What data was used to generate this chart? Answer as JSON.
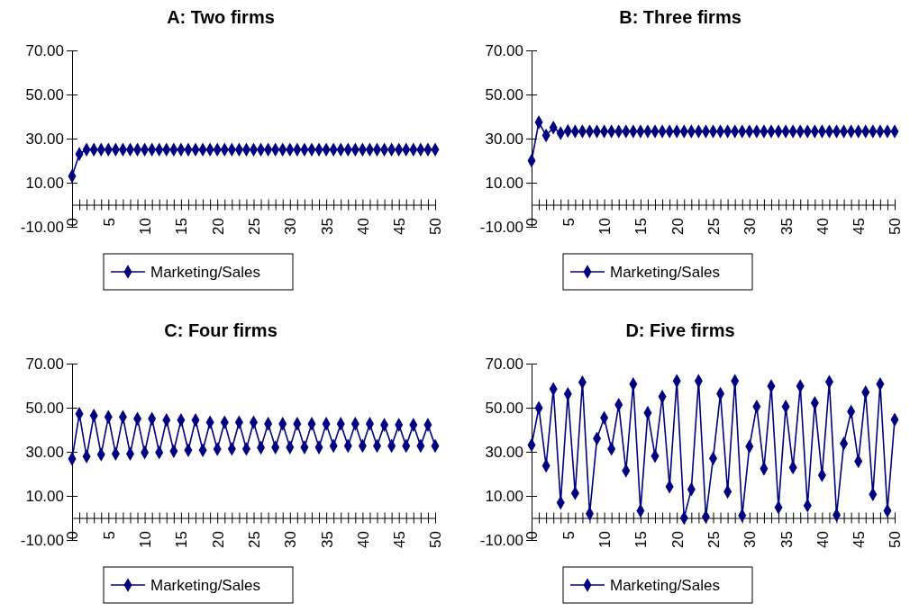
{
  "chart_data": [
    {
      "type": "line",
      "title": "A:  Two firms",
      "x": [
        0,
        1,
        2,
        3,
        4,
        5,
        6,
        7,
        8,
        9,
        10,
        11,
        12,
        13,
        14,
        15,
        16,
        17,
        18,
        19,
        20,
        21,
        22,
        23,
        24,
        25,
        26,
        27,
        28,
        29,
        30,
        31,
        32,
        33,
        34,
        35,
        36,
        37,
        38,
        39,
        40,
        41,
        42,
        43,
        44,
        45,
        46,
        47,
        48,
        49,
        50
      ],
      "series": [
        {
          "name": "Marketing/Sales",
          "color": "#000080",
          "values": [
            13,
            23,
            25,
            25,
            25,
            25,
            25,
            25,
            25,
            25,
            25,
            25,
            25,
            25,
            25,
            25,
            25,
            25,
            25,
            25,
            25,
            25,
            25,
            25,
            25,
            25,
            25,
            25,
            25,
            25,
            25,
            25,
            25,
            25,
            25,
            25,
            25,
            25,
            25,
            25,
            25,
            25,
            25,
            25,
            25,
            25,
            25,
            25,
            25,
            25,
            25
          ]
        }
      ],
      "xlim": [
        0,
        50
      ],
      "ylim": [
        -10,
        70
      ],
      "xticks": [
        0,
        {
          "value": 1,
          "label": null
        },
        {
          "value": 2,
          "label": null
        },
        {
          "value": 3,
          "label": null
        },
        {
          "value": 4,
          "label": null
        },
        5,
        {
          "value": 6,
          "label": null
        },
        {
          "value": 7,
          "label": null
        },
        {
          "value": 8,
          "label": null
        },
        {
          "value": 9,
          "label": null
        },
        10,
        {
          "value": 11,
          "label": null
        },
        {
          "value": 12,
          "label": null
        },
        {
          "value": 13,
          "label": null
        },
        {
          "value": 14,
          "label": null
        },
        15,
        {
          "value": 16,
          "label": null
        },
        {
          "value": 17,
          "label": null
        },
        {
          "value": 18,
          "label": null
        },
        {
          "value": 19,
          "label": null
        },
        20,
        {
          "value": 21,
          "label": null
        },
        {
          "value": 22,
          "label": null
        },
        {
          "value": 23,
          "label": null
        },
        {
          "value": 24,
          "label": null
        },
        25,
        {
          "value": 26,
          "label": null
        },
        {
          "value": 27,
          "label": null
        },
        {
          "value": 28,
          "label": null
        },
        {
          "value": 29,
          "label": null
        },
        30,
        {
          "value": 31,
          "label": null
        },
        {
          "value": 32,
          "label": null
        },
        {
          "value": 33,
          "label": null
        },
        {
          "value": 34,
          "label": null
        },
        35,
        {
          "value": 36,
          "label": null
        },
        {
          "value": 37,
          "label": null
        },
        {
          "value": 38,
          "label": null
        },
        {
          "value": 39,
          "label": null
        },
        40,
        {
          "value": 41,
          "label": null
        },
        {
          "value": 42,
          "label": null
        },
        {
          "value": 43,
          "label": null
        },
        {
          "value": 44,
          "label": null
        },
        45,
        {
          "value": 46,
          "label": null
        },
        {
          "value": 47,
          "label": null
        },
        {
          "value": 48,
          "label": null
        },
        {
          "value": 49,
          "label": null
        },
        50
      ],
      "yticks": [
        {
          "value": -10,
          "label": "-10.00"
        },
        {
          "value": 10,
          "label": "10.00"
        },
        {
          "value": 30,
          "label": "30.00"
        },
        {
          "value": 50,
          "label": "50.00"
        },
        {
          "value": 70,
          "label": "70.00"
        }
      ],
      "legend": "bottom",
      "marker": "diamond"
    },
    {
      "type": "line",
      "title": "B:  Three firms",
      "x": [
        0,
        1,
        2,
        3,
        4,
        5,
        6,
        7,
        8,
        9,
        10,
        11,
        12,
        13,
        14,
        15,
        16,
        17,
        18,
        19,
        20,
        21,
        22,
        23,
        24,
        25,
        26,
        27,
        28,
        29,
        30,
        31,
        32,
        33,
        34,
        35,
        36,
        37,
        38,
        39,
        40,
        41,
        42,
        43,
        44,
        45,
        46,
        47,
        48,
        49,
        50
      ],
      "series": [
        {
          "name": "Marketing/Sales",
          "color": "#000080",
          "values": [
            20,
            37.4,
            31.4,
            35,
            32.5,
            33.5,
            33.3,
            33.3,
            33.3,
            33.3,
            33.3,
            33.3,
            33.3,
            33.3,
            33.3,
            33.3,
            33.3,
            33.3,
            33.3,
            33.3,
            33.3,
            33.3,
            33.3,
            33.3,
            33.3,
            33.3,
            33.3,
            33.3,
            33.3,
            33.3,
            33.3,
            33.3,
            33.3,
            33.3,
            33.3,
            33.3,
            33.3,
            33.3,
            33.3,
            33.3,
            33.3,
            33.3,
            33.3,
            33.3,
            33.3,
            33.3,
            33.3,
            33.3,
            33.3,
            33.3,
            33.3
          ]
        }
      ],
      "xlim": [
        0,
        50
      ],
      "ylim": [
        -10,
        70
      ],
      "xticks": [
        0,
        {
          "value": 1,
          "label": null
        },
        {
          "value": 2,
          "label": null
        },
        {
          "value": 3,
          "label": null
        },
        {
          "value": 4,
          "label": null
        },
        5,
        {
          "value": 6,
          "label": null
        },
        {
          "value": 7,
          "label": null
        },
        {
          "value": 8,
          "label": null
        },
        {
          "value": 9,
          "label": null
        },
        10,
        {
          "value": 11,
          "label": null
        },
        {
          "value": 12,
          "label": null
        },
        {
          "value": 13,
          "label": null
        },
        {
          "value": 14,
          "label": null
        },
        15,
        {
          "value": 16,
          "label": null
        },
        {
          "value": 17,
          "label": null
        },
        {
          "value": 18,
          "label": null
        },
        {
          "value": 19,
          "label": null
        },
        20,
        {
          "value": 21,
          "label": null
        },
        {
          "value": 22,
          "label": null
        },
        {
          "value": 23,
          "label": null
        },
        {
          "value": 24,
          "label": null
        },
        25,
        {
          "value": 26,
          "label": null
        },
        {
          "value": 27,
          "label": null
        },
        {
          "value": 28,
          "label": null
        },
        {
          "value": 29,
          "label": null
        },
        30,
        {
          "value": 31,
          "label": null
        },
        {
          "value": 32,
          "label": null
        },
        {
          "value": 33,
          "label": null
        },
        {
          "value": 34,
          "label": null
        },
        35,
        {
          "value": 36,
          "label": null
        },
        {
          "value": 37,
          "label": null
        },
        {
          "value": 38,
          "label": null
        },
        {
          "value": 39,
          "label": null
        },
        40,
        {
          "value": 41,
          "label": null
        },
        {
          "value": 42,
          "label": null
        },
        {
          "value": 43,
          "label": null
        },
        {
          "value": 44,
          "label": null
        },
        45,
        {
          "value": 46,
          "label": null
        },
        {
          "value": 47,
          "label": null
        },
        {
          "value": 48,
          "label": null
        },
        {
          "value": 49,
          "label": null
        },
        50
      ],
      "yticks": [
        {
          "value": -10,
          "label": "-10.00"
        },
        {
          "value": 10,
          "label": "10.00"
        },
        {
          "value": 30,
          "label": "30.00"
        },
        {
          "value": 50,
          "label": "50.00"
        },
        {
          "value": 70,
          "label": "70.00"
        }
      ],
      "legend": "bottom",
      "marker": "diamond"
    },
    {
      "type": "line",
      "title": "C:  Four firms",
      "x": [
        0,
        1,
        2,
        3,
        4,
        5,
        6,
        7,
        8,
        9,
        10,
        11,
        12,
        13,
        14,
        15,
        16,
        17,
        18,
        19,
        20,
        21,
        22,
        23,
        24,
        25,
        26,
        27,
        28,
        29,
        30,
        31,
        32,
        33,
        34,
        35,
        36,
        37,
        38,
        39,
        40,
        41,
        42,
        43,
        44,
        45,
        46,
        47,
        48,
        49,
        50
      ],
      "series": [
        {
          "name": "Marketing/Sales",
          "color": "#000080",
          "values": [
            26.8,
            47.2,
            27.9,
            46.4,
            28.8,
            45.8,
            29.1,
            45.8,
            29.1,
            45,
            29.7,
            45,
            29.7,
            44.4,
            30.3,
            44.4,
            30.7,
            44.4,
            30.7,
            43.4,
            31.2,
            43.4,
            31.3,
            43.4,
            31.3,
            43.4,
            31.9,
            42.7,
            32,
            42.7,
            32,
            42.7,
            32,
            42.7,
            32,
            42.7,
            32.7,
            42.7,
            32.7,
            42.7,
            32.7,
            42.7,
            32.7,
            42.2,
            32.7,
            42.2,
            32.7,
            42.2,
            32.7,
            42.2,
            32.7
          ]
        }
      ],
      "xlim": [
        0,
        50
      ],
      "ylim": [
        -10,
        70
      ],
      "xticks": [
        0,
        {
          "value": 1,
          "label": null
        },
        {
          "value": 2,
          "label": null
        },
        {
          "value": 3,
          "label": null
        },
        {
          "value": 4,
          "label": null
        },
        5,
        {
          "value": 6,
          "label": null
        },
        {
          "value": 7,
          "label": null
        },
        {
          "value": 8,
          "label": null
        },
        {
          "value": 9,
          "label": null
        },
        10,
        {
          "value": 11,
          "label": null
        },
        {
          "value": 12,
          "label": null
        },
        {
          "value": 13,
          "label": null
        },
        {
          "value": 14,
          "label": null
        },
        15,
        {
          "value": 16,
          "label": null
        },
        {
          "value": 17,
          "label": null
        },
        {
          "value": 18,
          "label": null
        },
        {
          "value": 19,
          "label": null
        },
        20,
        {
          "value": 21,
          "label": null
        },
        {
          "value": 22,
          "label": null
        },
        {
          "value": 23,
          "label": null
        },
        {
          "value": 24,
          "label": null
        },
        25,
        {
          "value": 26,
          "label": null
        },
        {
          "value": 27,
          "label": null
        },
        {
          "value": 28,
          "label": null
        },
        {
          "value": 29,
          "label": null
        },
        30,
        {
          "value": 31,
          "label": null
        },
        {
          "value": 32,
          "label": null
        },
        {
          "value": 33,
          "label": null
        },
        {
          "value": 34,
          "label": null
        },
        35,
        {
          "value": 36,
          "label": null
        },
        {
          "value": 37,
          "label": null
        },
        {
          "value": 38,
          "label": null
        },
        {
          "value": 39,
          "label": null
        },
        40,
        {
          "value": 41,
          "label": null
        },
        {
          "value": 42,
          "label": null
        },
        {
          "value": 43,
          "label": null
        },
        {
          "value": 44,
          "label": null
        },
        45,
        {
          "value": 46,
          "label": null
        },
        {
          "value": 47,
          "label": null
        },
        {
          "value": 48,
          "label": null
        },
        {
          "value": 49,
          "label": null
        },
        50
      ],
      "yticks": [
        {
          "value": -10,
          "label": "-10.00"
        },
        {
          "value": 10,
          "label": "10.00"
        },
        {
          "value": 30,
          "label": "30.00"
        },
        {
          "value": 50,
          "label": "50.00"
        },
        {
          "value": 70,
          "label": "70.00"
        }
      ],
      "legend": "bottom",
      "marker": "diamond"
    },
    {
      "type": "line",
      "title": "D:  Five firms",
      "x": [
        0,
        1,
        2,
        3,
        4,
        5,
        6,
        7,
        8,
        9,
        10,
        11,
        12,
        13,
        14,
        15,
        16,
        17,
        18,
        19,
        20,
        21,
        22,
        23,
        24,
        25,
        26,
        27,
        28,
        29,
        30,
        31,
        32,
        33,
        34,
        35,
        36,
        37,
        38,
        39,
        40,
        41,
        42,
        43,
        44,
        45,
        46,
        47,
        48,
        49,
        50
      ],
      "series": [
        {
          "name": "Marketing/Sales",
          "color": "#000080",
          "values": [
            33.1,
            49.9,
            23.7,
            58.5,
            6.9,
            56.2,
            11.2,
            61.5,
            1.9,
            36,
            45.4,
            31.3,
            51.3,
            21.4,
            60.7,
            3.3,
            47.7,
            28.1,
            55,
            14.2,
            62.1,
            0,
            13,
            62.1,
            0.5,
            27,
            56.3,
            11.9,
            62.1,
            1.1,
            32.4,
            50.5,
            22.3,
            59.8,
            4.8,
            50.5,
            22.9,
            59.8,
            5.6,
            52.1,
            19.4,
            61.7,
            1.3,
            33.8,
            48.3,
            25.7,
            57,
            10.7,
            60.7,
            3.3,
            44.6
          ]
        }
      ],
      "xlim": [
        0,
        50
      ],
      "ylim": [
        -10,
        70
      ],
      "xticks": [
        0,
        {
          "value": 1,
          "label": null
        },
        {
          "value": 2,
          "label": null
        },
        {
          "value": 3,
          "label": null
        },
        {
          "value": 4,
          "label": null
        },
        5,
        {
          "value": 6,
          "label": null
        },
        {
          "value": 7,
          "label": null
        },
        {
          "value": 8,
          "label": null
        },
        {
          "value": 9,
          "label": null
        },
        10,
        {
          "value": 11,
          "label": null
        },
        {
          "value": 12,
          "label": null
        },
        {
          "value": 13,
          "label": null
        },
        {
          "value": 14,
          "label": null
        },
        15,
        {
          "value": 16,
          "label": null
        },
        {
          "value": 17,
          "label": null
        },
        {
          "value": 18,
          "label": null
        },
        {
          "value": 19,
          "label": null
        },
        20,
        {
          "value": 21,
          "label": null
        },
        {
          "value": 22,
          "label": null
        },
        {
          "value": 23,
          "label": null
        },
        {
          "value": 24,
          "label": null
        },
        25,
        {
          "value": 26,
          "label": null
        },
        {
          "value": 27,
          "label": null
        },
        {
          "value": 28,
          "label": null
        },
        {
          "value": 29,
          "label": null
        },
        30,
        {
          "value": 31,
          "label": null
        },
        {
          "value": 32,
          "label": null
        },
        {
          "value": 33,
          "label": null
        },
        {
          "value": 34,
          "label": null
        },
        35,
        {
          "value": 36,
          "label": null
        },
        {
          "value": 37,
          "label": null
        },
        {
          "value": 38,
          "label": null
        },
        {
          "value": 39,
          "label": null
        },
        40,
        {
          "value": 41,
          "label": null
        },
        {
          "value": 42,
          "label": null
        },
        {
          "value": 43,
          "label": null
        },
        {
          "value": 44,
          "label": null
        },
        45,
        {
          "value": 46,
          "label": null
        },
        {
          "value": 47,
          "label": null
        },
        {
          "value": 48,
          "label": null
        },
        {
          "value": 49,
          "label": null
        },
        50
      ],
      "yticks": [
        {
          "value": -10,
          "label": "-10.00"
        },
        {
          "value": 10,
          "label": "10.00"
        },
        {
          "value": 30,
          "label": "30.00"
        },
        {
          "value": 50,
          "label": "50.00"
        },
        {
          "value": 70,
          "label": "70.00"
        }
      ],
      "legend": "bottom",
      "marker": "diamond"
    }
  ]
}
